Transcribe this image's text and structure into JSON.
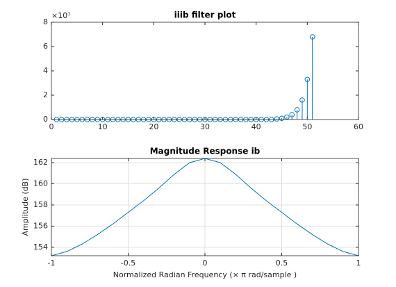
{
  "chart_data": [
    {
      "type": "stem",
      "title": "iiib filter plot",
      "y_multiplier": "×10⁷",
      "x": [
        1,
        2,
        3,
        4,
        5,
        6,
        7,
        8,
        9,
        10,
        11,
        12,
        13,
        14,
        15,
        16,
        17,
        18,
        19,
        20,
        21,
        22,
        23,
        24,
        25,
        26,
        27,
        28,
        29,
        30,
        31,
        32,
        33,
        34,
        35,
        36,
        37,
        38,
        39,
        40,
        41,
        42,
        43,
        44,
        45,
        46,
        47,
        48,
        49,
        50,
        51
      ],
      "values": [
        0,
        0,
        0,
        0,
        0,
        0,
        0,
        0,
        0,
        0,
        0,
        0,
        0,
        0,
        0,
        0,
        0,
        0,
        0,
        0,
        0,
        0,
        0,
        0,
        0,
        0,
        0,
        0,
        0,
        0,
        0,
        0,
        0,
        0,
        0,
        0,
        0,
        0,
        0,
        0,
        0,
        0,
        0,
        0.05,
        0.1,
        0.2,
        0.4,
        0.8,
        1.6,
        3.3,
        6.8
      ],
      "color": "#0072bd",
      "xlim": [
        0,
        60
      ],
      "xticks": [
        0,
        10,
        20,
        30,
        40,
        50,
        60
      ],
      "ylim": [
        0,
        8
      ],
      "yticks": [
        0,
        2,
        4,
        6,
        8
      ],
      "grid": false
    },
    {
      "type": "line",
      "title": "Magnitude Response ib",
      "x_label": "Normalized Radian Frequency (× π rad/sample )",
      "y_label": "Amplitude (dB)",
      "x": [
        -1,
        -0.9,
        -0.8,
        -0.7,
        -0.6,
        -0.5,
        -0.4,
        -0.3,
        -0.2,
        -0.1,
        0,
        0.1,
        0.2,
        0.3,
        0.4,
        0.5,
        0.6,
        0.7,
        0.8,
        0.9,
        1
      ],
      "values": [
        153.2,
        153.6,
        154.3,
        155.2,
        156.2,
        157.3,
        158.4,
        159.6,
        160.9,
        162.0,
        162.4,
        162.0,
        160.9,
        159.6,
        158.4,
        157.3,
        156.2,
        155.2,
        154.3,
        153.6,
        153.2
      ],
      "color": "#0072bd",
      "xlim": [
        -1,
        1
      ],
      "xticks": [
        -1,
        -0.5,
        0,
        0.5,
        1
      ],
      "ylim": [
        153.2,
        162.4
      ],
      "yticks": [
        154,
        156,
        158,
        160,
        162
      ],
      "grid": true
    }
  ]
}
